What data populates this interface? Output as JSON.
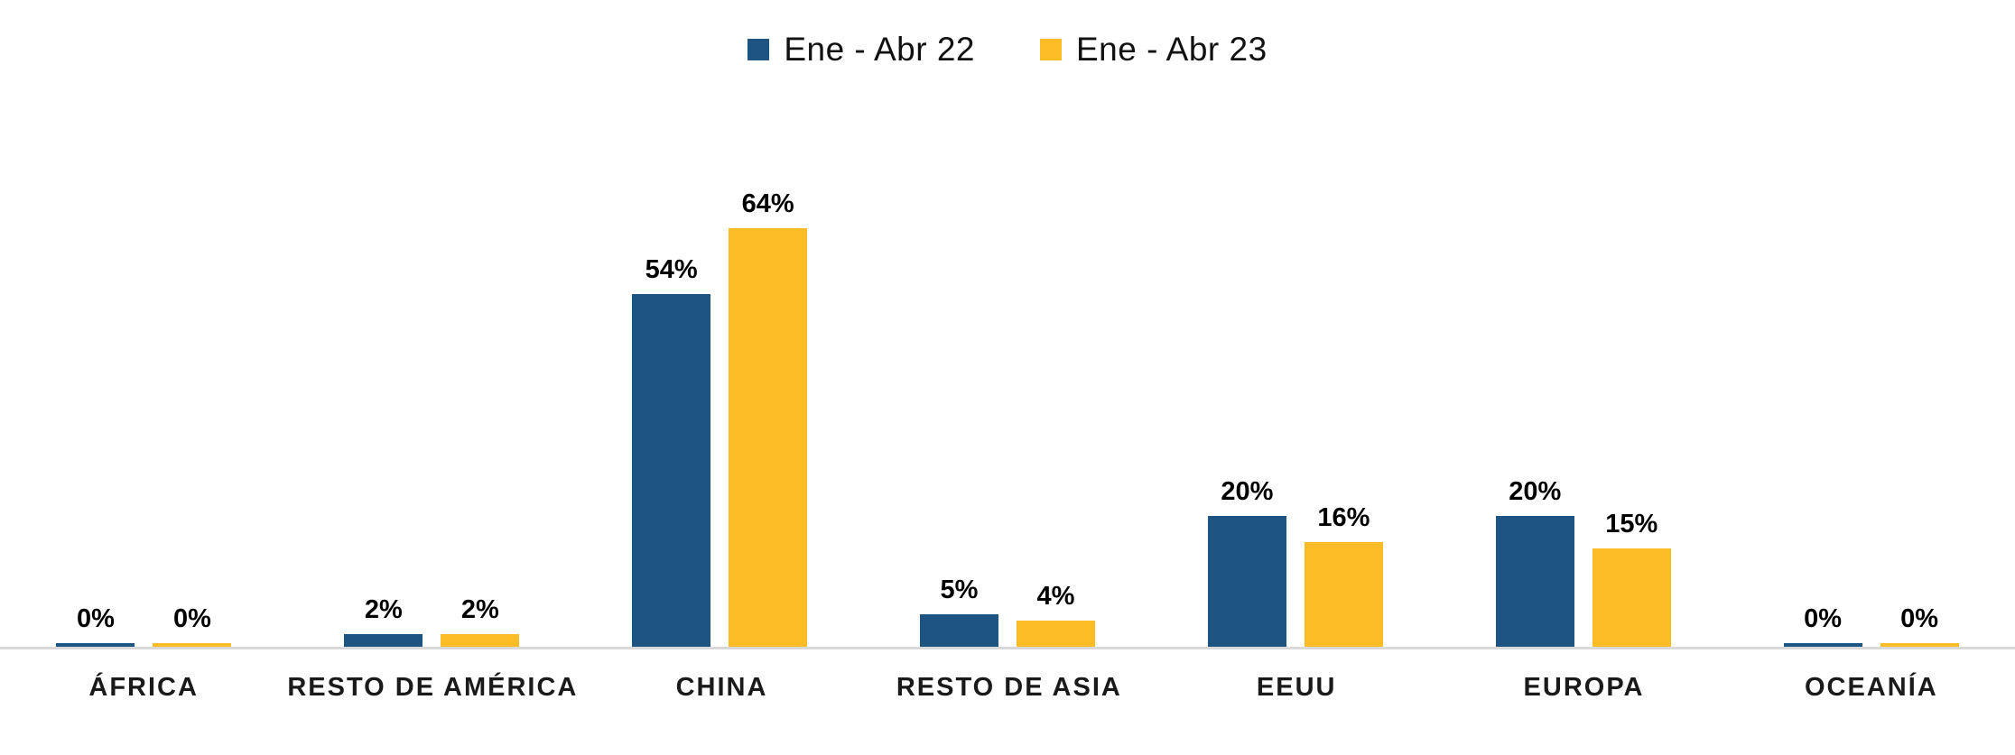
{
  "chart_data": {
    "type": "bar",
    "title": "",
    "xlabel": "",
    "ylabel": "",
    "categories": [
      "ÁFRICA",
      "RESTO DE AMÉRICA",
      "CHINA",
      "RESTO DE ASIA",
      "EEUU",
      "EUROPA",
      "OCEANÍA"
    ],
    "series": [
      {
        "name": "Ene - Abr 22",
        "color": "#1E5482",
        "values": [
          0,
          2,
          54,
          5,
          20,
          20,
          0
        ],
        "labels": [
          "0%",
          "2%",
          "54%",
          "5%",
          "20%",
          "20%",
          "0%"
        ]
      },
      {
        "name": "Ene - Abr 23",
        "color": "#FBBC25",
        "values": [
          0,
          2,
          64,
          4,
          16,
          15,
          0
        ],
        "labels": [
          "0%",
          "2%",
          "64%",
          "4%",
          "16%",
          "15%",
          "0%"
        ]
      }
    ],
    "ylim": [
      0,
      70
    ],
    "grid": false,
    "y_axis_visible": false,
    "data_labels_visible": true,
    "legend_position": "top-center",
    "axis_line_color": "#D9D9D9",
    "background_color": "#FFFFFF"
  }
}
